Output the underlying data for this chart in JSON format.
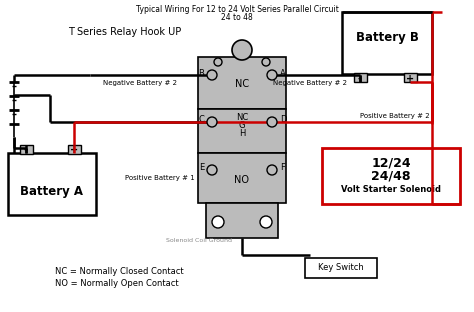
{
  "bg_color": "#ffffff",
  "title_line1": "Typical Wiring For 12 to 24 Volt Series Parallel Circuit",
  "title_line2": "24 to 48",
  "label_relay": "T Series Relay Hook UP",
  "label_battery_a": "Battery A",
  "label_battery_b": "Battery B",
  "label_nc_top": "NC",
  "label_nc_mid": "NC",
  "label_g": "G",
  "label_h": "H",
  "label_no": "NO",
  "label_key": "Key Switch",
  "label_coil": "Solenoid Coil Ground",
  "label_nc_def": "NC = Normally Closed Contact",
  "label_no_def": "NO = Normally Open Contact",
  "label_A": "A",
  "label_B": "B",
  "label_C": "C",
  "label_D": "D",
  "label_E": "E",
  "label_F": "F",
  "label_neg_bat2_left": "Negative Battery # 2",
  "label_neg_bat2_right": "Negative Battery # 2",
  "label_pos_bat2": "Positive Battery # 2",
  "label_pos_bat1": "Positive Battery # 1",
  "sol_line1": "12/24",
  "sol_line2": "24/48",
  "sol_line3": "Volt Starter Solenoid",
  "black": "#000000",
  "red": "#cc0000",
  "gray": "#999999",
  "light_gray": "#bbbbbb",
  "med_gray": "#888888"
}
